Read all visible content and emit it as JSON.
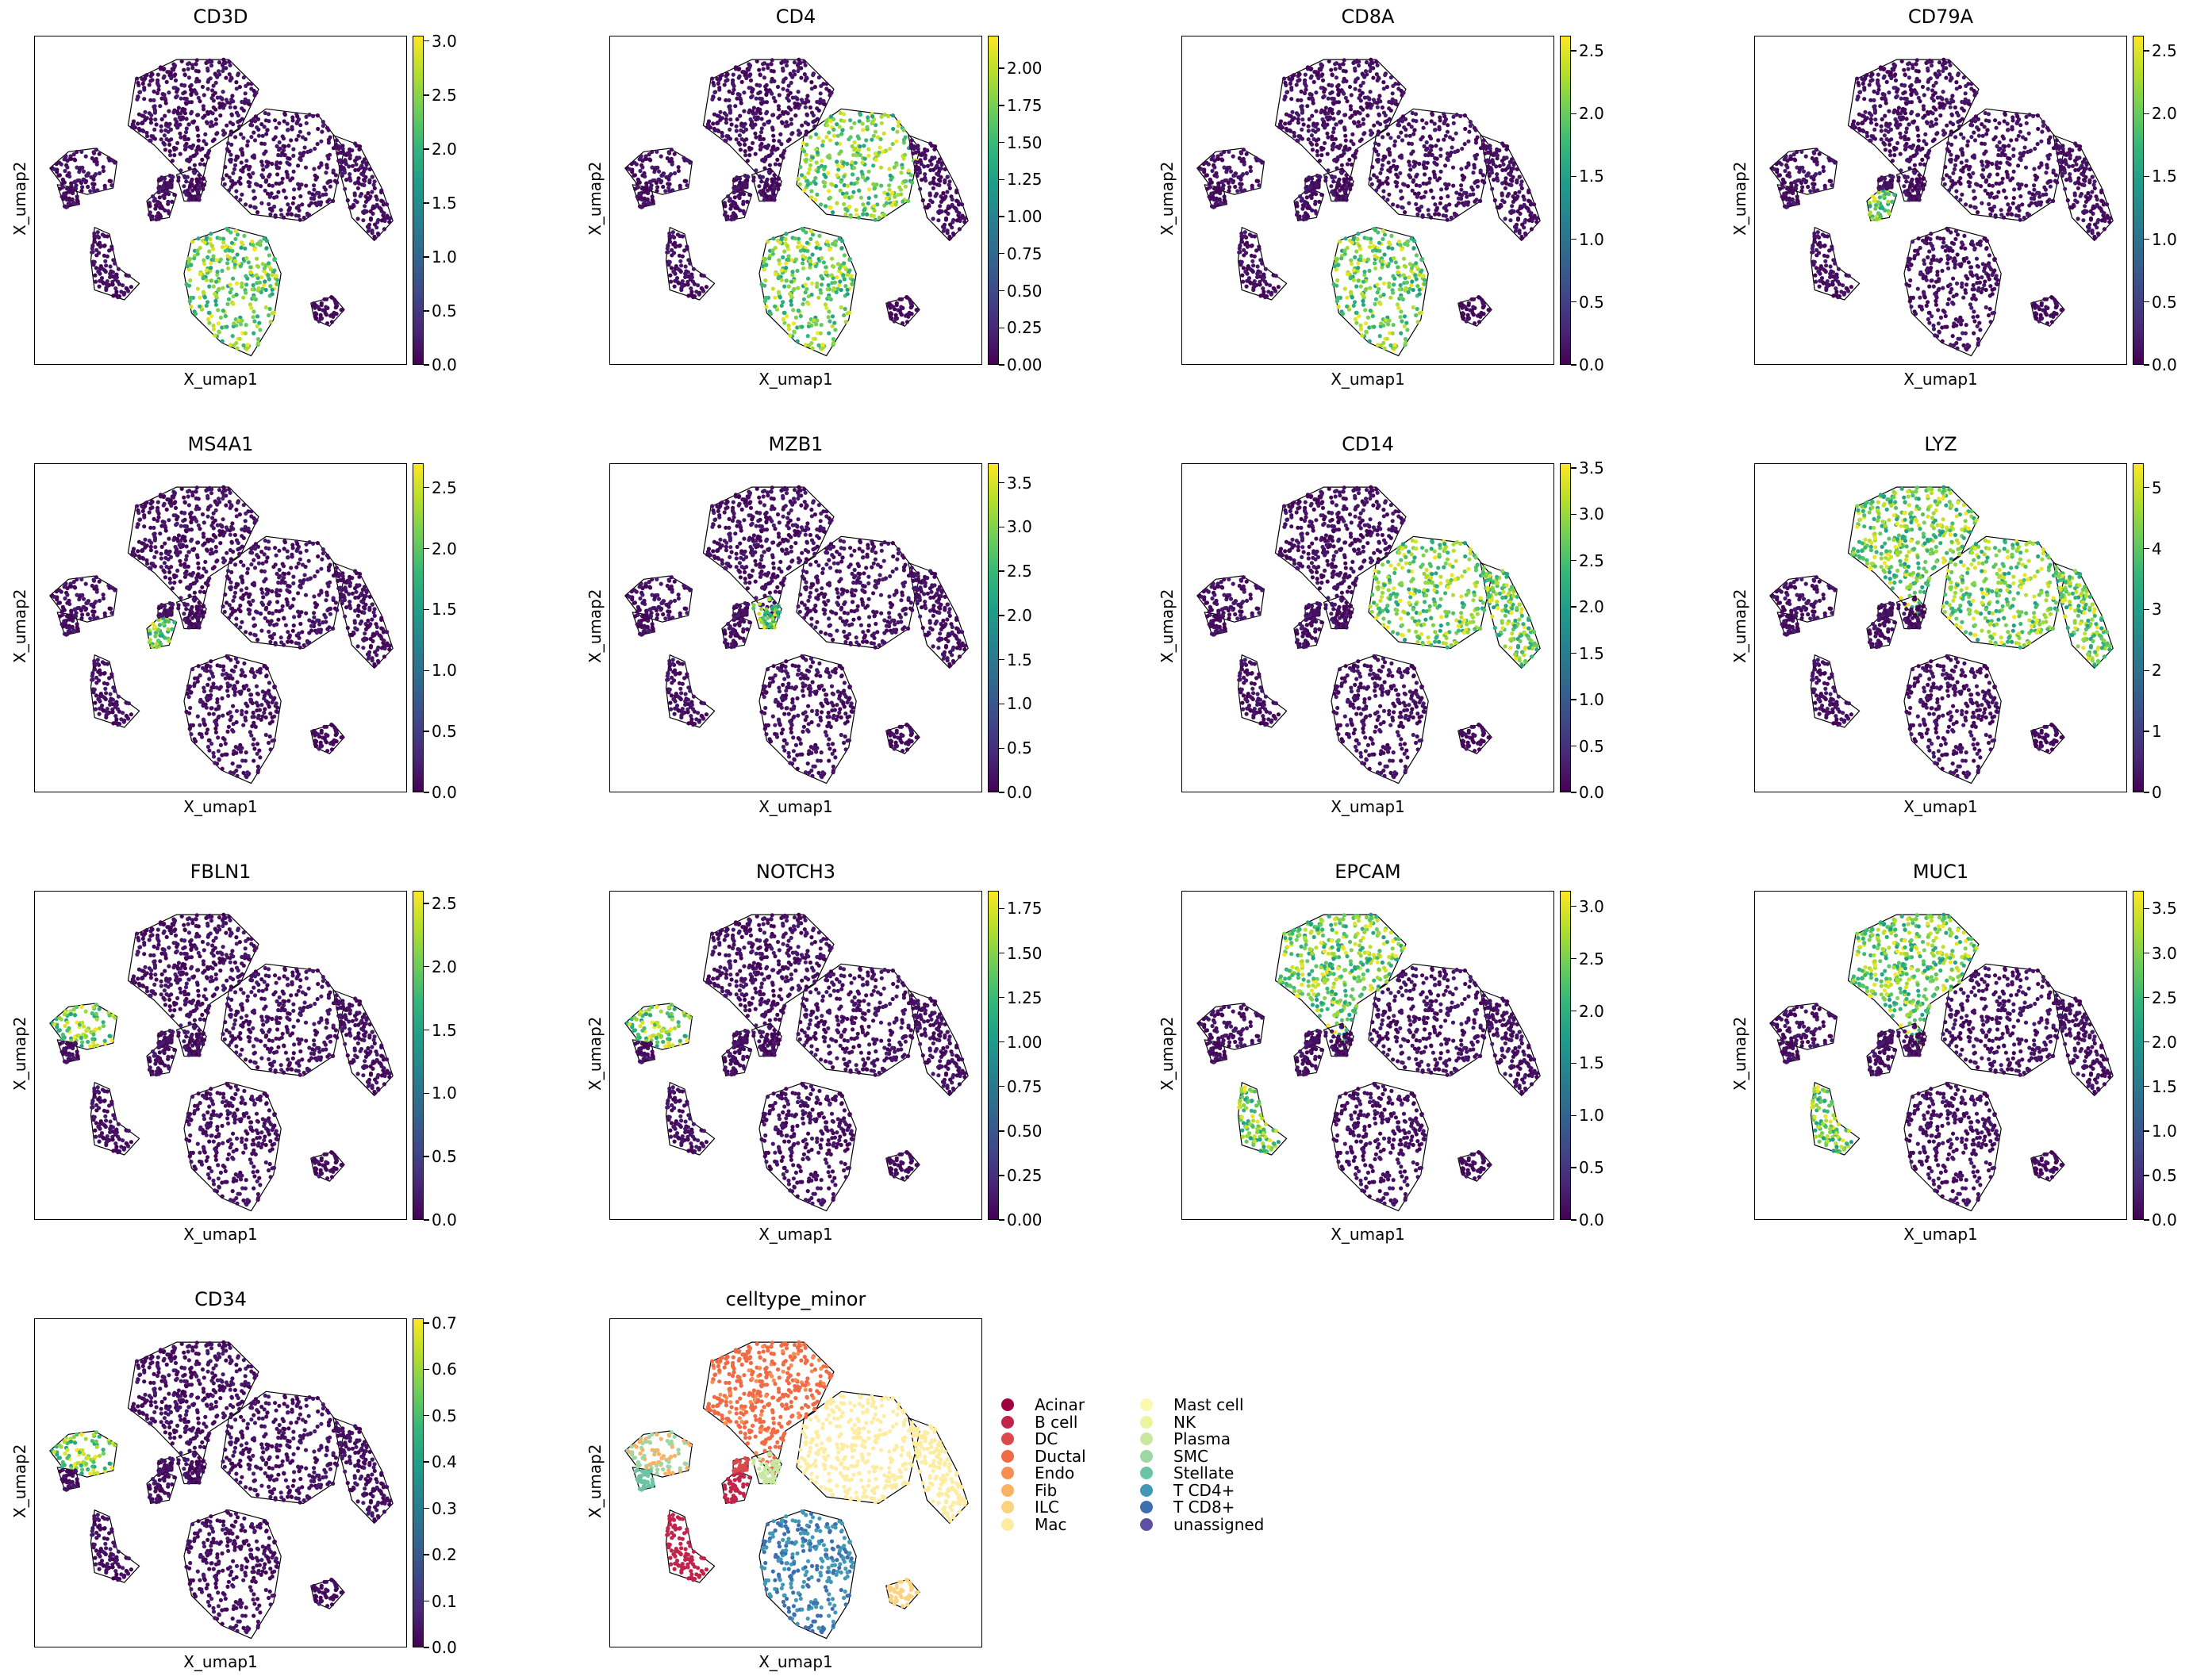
{
  "chart_data": [
    {
      "type": "scatter",
      "title": "CD3D",
      "xlabel": "X_umap1",
      "ylabel": "X_umap2",
      "colorbar": {
        "colormap": "viridis",
        "min": 0.0,
        "max": 3.05,
        "ticks": [
          "0.0",
          "0.5",
          "1.0",
          "1.5",
          "2.0",
          "2.5",
          "3.0"
        ],
        "tick_values": [
          0,
          0.5,
          1,
          1.5,
          2,
          2.5,
          3
        ]
      },
      "high_regions": [
        "tcell"
      ]
    },
    {
      "type": "scatter",
      "title": "CD4",
      "xlabel": "X_umap1",
      "ylabel": "X_umap2",
      "colorbar": {
        "colormap": "viridis",
        "min": 0.0,
        "max": 2.22,
        "ticks": [
          "0.00",
          "0.25",
          "0.50",
          "0.75",
          "1.00",
          "1.25",
          "1.50",
          "1.75",
          "2.00"
        ],
        "tick_values": [
          0,
          0.25,
          0.5,
          0.75,
          1,
          1.25,
          1.5,
          1.75,
          2
        ]
      },
      "high_regions": [
        "myeloid",
        "tcell"
      ]
    },
    {
      "type": "scatter",
      "title": "CD8A",
      "xlabel": "X_umap1",
      "ylabel": "X_umap2",
      "colorbar": {
        "colormap": "viridis",
        "min": 0.0,
        "max": 2.62,
        "ticks": [
          "0.0",
          "0.5",
          "1.0",
          "1.5",
          "2.0",
          "2.5"
        ],
        "tick_values": [
          0,
          0.5,
          1,
          1.5,
          2,
          2.5
        ]
      },
      "high_regions": [
        "tcell"
      ]
    },
    {
      "type": "scatter",
      "title": "CD79A",
      "xlabel": "X_umap1",
      "ylabel": "X_umap2",
      "colorbar": {
        "colormap": "viridis",
        "min": 0.0,
        "max": 2.62,
        "ticks": [
          "0.0",
          "0.5",
          "1.0",
          "1.5",
          "2.0",
          "2.5"
        ],
        "tick_values": [
          0,
          0.5,
          1,
          1.5,
          2,
          2.5
        ]
      },
      "high_regions": [
        "bcell"
      ]
    },
    {
      "type": "scatter",
      "title": "MS4A1",
      "xlabel": "X_umap1",
      "ylabel": "X_umap2",
      "colorbar": {
        "colormap": "viridis",
        "min": 0.0,
        "max": 2.7,
        "ticks": [
          "0.0",
          "0.5",
          "1.0",
          "1.5",
          "2.0",
          "2.5"
        ],
        "tick_values": [
          0,
          0.5,
          1,
          1.5,
          2,
          2.5
        ]
      },
      "high_regions": [
        "bcell"
      ]
    },
    {
      "type": "scatter",
      "title": "MZB1",
      "xlabel": "X_umap1",
      "ylabel": "X_umap2",
      "colorbar": {
        "colormap": "viridis",
        "min": 0.0,
        "max": 3.72,
        "ticks": [
          "0.0",
          "0.5",
          "1.0",
          "1.5",
          "2.0",
          "2.5",
          "3.0",
          "3.5"
        ],
        "tick_values": [
          0,
          0.5,
          1,
          1.5,
          2,
          2.5,
          3,
          3.5
        ]
      },
      "high_regions": [
        "plasma"
      ]
    },
    {
      "type": "scatter",
      "title": "CD14",
      "xlabel": "X_umap1",
      "ylabel": "X_umap2",
      "colorbar": {
        "colormap": "viridis",
        "min": 0.0,
        "max": 3.55,
        "ticks": [
          "0.0",
          "0.5",
          "1.0",
          "1.5",
          "2.0",
          "2.5",
          "3.0",
          "3.5"
        ],
        "tick_values": [
          0,
          0.5,
          1,
          1.5,
          2,
          2.5,
          3,
          3.5
        ]
      },
      "high_regions": [
        "myeloid",
        "myeloid_tail"
      ]
    },
    {
      "type": "scatter",
      "title": "LYZ",
      "xlabel": "X_umap1",
      "ylabel": "X_umap2",
      "colorbar": {
        "colormap": "viridis",
        "min": 0.0,
        "max": 5.4,
        "ticks": [
          "0",
          "1",
          "2",
          "3",
          "4",
          "5"
        ],
        "tick_values": [
          0,
          1,
          2,
          3,
          4,
          5
        ]
      },
      "high_regions": [
        "myeloid",
        "myeloid_tail",
        "epithelial"
      ]
    },
    {
      "type": "scatter",
      "title": "FBLN1",
      "xlabel": "X_umap1",
      "ylabel": "X_umap2",
      "colorbar": {
        "colormap": "viridis",
        "min": 0.0,
        "max": 2.6,
        "ticks": [
          "0.0",
          "0.5",
          "1.0",
          "1.5",
          "2.0",
          "2.5"
        ],
        "tick_values": [
          0,
          0.5,
          1,
          1.5,
          2,
          2.5
        ]
      },
      "high_regions": [
        "fibro"
      ]
    },
    {
      "type": "scatter",
      "title": "NOTCH3",
      "xlabel": "X_umap1",
      "ylabel": "X_umap2",
      "colorbar": {
        "colormap": "viridis",
        "min": 0.0,
        "max": 1.85,
        "ticks": [
          "0.00",
          "0.25",
          "0.50",
          "0.75",
          "1.00",
          "1.25",
          "1.50",
          "1.75"
        ],
        "tick_values": [
          0,
          0.25,
          0.5,
          0.75,
          1,
          1.25,
          1.5,
          1.75
        ]
      },
      "high_regions": [
        "fibro"
      ]
    },
    {
      "type": "scatter",
      "title": "EPCAM",
      "xlabel": "X_umap1",
      "ylabel": "X_umap2",
      "colorbar": {
        "colormap": "viridis",
        "min": 0.0,
        "max": 3.15,
        "ticks": [
          "0.0",
          "0.5",
          "1.0",
          "1.5",
          "2.0",
          "2.5",
          "3.0"
        ],
        "tick_values": [
          0,
          0.5,
          1,
          1.5,
          2,
          2.5,
          3
        ]
      },
      "high_regions": [
        "epithelial",
        "acinar"
      ]
    },
    {
      "type": "scatter",
      "title": "MUC1",
      "xlabel": "X_umap1",
      "ylabel": "X_umap2",
      "colorbar": {
        "colormap": "viridis",
        "min": 0.0,
        "max": 3.7,
        "ticks": [
          "0.0",
          "0.5",
          "1.0",
          "1.5",
          "2.0",
          "2.5",
          "3.0",
          "3.5"
        ],
        "tick_values": [
          0,
          0.5,
          1,
          1.5,
          2,
          2.5,
          3,
          3.5
        ]
      },
      "high_regions": [
        "epithelial",
        "acinar"
      ]
    },
    {
      "type": "scatter",
      "title": "CD34",
      "xlabel": "X_umap1",
      "ylabel": "X_umap2",
      "colorbar": {
        "colormap": "viridis",
        "min": 0.0,
        "max": 0.71,
        "ticks": [
          "0.0",
          "0.1",
          "0.2",
          "0.3",
          "0.4",
          "0.5",
          "0.6",
          "0.7"
        ],
        "tick_values": [
          0,
          0.1,
          0.2,
          0.3,
          0.4,
          0.5,
          0.6,
          0.7
        ]
      },
      "high_regions": [
        "fibro"
      ]
    },
    {
      "type": "scatter",
      "title": "celltype_minor",
      "xlabel": "X_umap1",
      "ylabel": "X_umap2",
      "categorical": true,
      "legend": [
        {
          "label": "Acinar",
          "color": "#9e0142"
        },
        {
          "label": "B cell",
          "color": "#c0244a"
        },
        {
          "label": "DC",
          "color": "#dc494c"
        },
        {
          "label": "Ductal",
          "color": "#ef6a45"
        },
        {
          "label": "Endo",
          "color": "#f88e52"
        },
        {
          "label": "Fib",
          "color": "#fbb263"
        },
        {
          "label": "ILC",
          "color": "#fdd380"
        },
        {
          "label": "Mac",
          "color": "#feeda1"
        },
        {
          "label": "Mast cell",
          "color": "#fbf8b0"
        },
        {
          "label": "NK",
          "color": "#eaf69e"
        },
        {
          "label": "Plasma",
          "color": "#c7e89e"
        },
        {
          "label": "SMC",
          "color": "#9dd7a4"
        },
        {
          "label": "Stellate",
          "color": "#6bc4a4"
        },
        {
          "label": "T CD4+",
          "color": "#4199b6"
        },
        {
          "label": "T CD8+",
          "color": "#3d6fb0"
        },
        {
          "label": "unassigned",
          "color": "#5e4fa2"
        }
      ]
    }
  ]
}
